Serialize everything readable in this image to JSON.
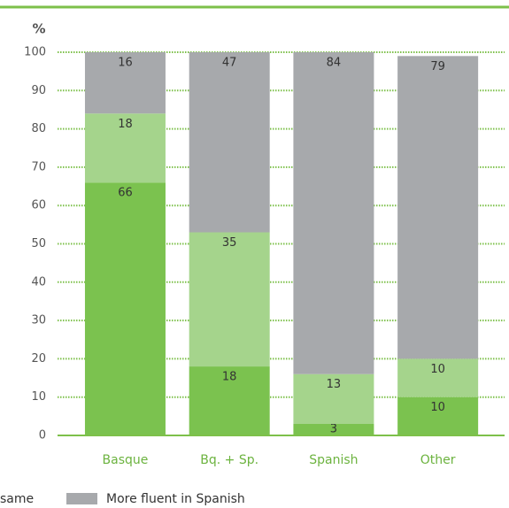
{
  "chart_data": {
    "type": "stacked_bar",
    "y_label": "%",
    "categories": [
      "Basque",
      "Bq. + Sp.",
      "Spanish",
      "Other"
    ],
    "series": [
      {
        "color": "#7bc24f",
        "values": [
          66,
          18,
          3,
          10
        ]
      },
      {
        "name": "same",
        "color": "#a5d48c",
        "values": [
          18,
          35,
          13,
          10
        ]
      },
      {
        "name": "More fluent in Spanish",
        "color": "#a7a9ac",
        "values": [
          16,
          47,
          84,
          79
        ]
      }
    ],
    "ylim": [
      0,
      100
    ],
    "yticks": [
      0,
      10,
      20,
      30,
      40,
      50,
      60,
      70,
      80,
      90,
      100
    ],
    "grid": true
  }
}
